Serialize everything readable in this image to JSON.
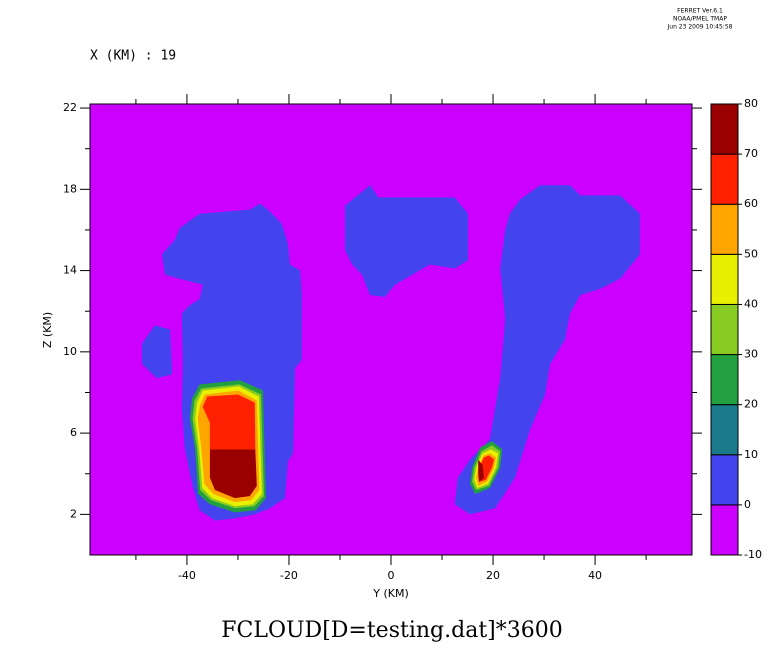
{
  "chart_data": {
    "type": "contour",
    "title": "FCLOUD[D=testing.dat]*3600",
    "subtitle": "X (KM) : 19",
    "header": [
      "FERRET Ver.6.1",
      "NOAA/PMEL TMAP",
      "Jun 23 2009 10:45:58"
    ],
    "x_label": "Y (KM)",
    "y_label": "Z (KM)",
    "xlim": [
      -59,
      59
    ],
    "ylim": [
      0,
      22.2
    ],
    "xticks": [
      -40,
      -20,
      0,
      20,
      40
    ],
    "xminorticks": [
      -50,
      -30,
      -10,
      10,
      30,
      50
    ],
    "yticks": [
      2,
      6,
      10,
      14,
      18,
      22
    ],
    "yminorticks": [
      4,
      8,
      12,
      16,
      20
    ],
    "levels": [
      -10,
      0,
      10,
      20,
      30,
      40,
      50,
      60,
      70,
      80
    ],
    "level_colors": [
      "#cc00ff",
      "#4444ee",
      "#1a7a8a",
      "#22a040",
      "#88cc22",
      "#e8f000",
      "#ffa500",
      "#ff2000",
      "#9b0000"
    ],
    "regions": [
      {
        "color": "#4444ee",
        "x": [
          -44.9,
          -42.4,
          -41.4,
          -37.5,
          -27.6,
          -25.7,
          -23.7,
          -21.4,
          -20.2,
          -19.8,
          -17.8,
          -17.5,
          -17.5,
          -18.8,
          -19.2,
          -20.2,
          -20.8,
          -23.7,
          -26.7,
          -30.6,
          -34.5,
          -37.5,
          -38.8,
          -40.4,
          -41.0,
          -40.8,
          -41.0,
          -39.4,
          -37.5,
          -36.9,
          -41.4,
          -44.3
        ],
        "y": [
          14.8,
          15.5,
          16.1,
          16.8,
          17.0,
          17.3,
          16.9,
          16.3,
          15.3,
          14.3,
          14.0,
          12.8,
          9.6,
          9.2,
          5.0,
          4.6,
          2.8,
          2.3,
          2.0,
          1.8,
          1.7,
          2.2,
          3.3,
          5.2,
          7.2,
          9.2,
          11.9,
          12.3,
          12.6,
          13.3,
          13.6,
          13.8
        ]
      },
      {
        "color": "#4444ee",
        "x": [
          -48.8,
          -46.3,
          -43.3,
          -42.9,
          -45.9,
          -48.8
        ],
        "y": [
          10.4,
          11.3,
          11.1,
          8.9,
          8.7,
          9.4
        ]
      },
      {
        "color": "#4444ee",
        "x": [
          -9.0,
          -4.1,
          -2.5,
          12.5,
          15.1,
          15.1,
          12.5,
          7.6,
          0.8,
          -1.2,
          -4.1,
          -5.7,
          -7.6,
          -9.0
        ],
        "y": [
          17.2,
          18.2,
          17.6,
          17.6,
          16.8,
          14.5,
          14.1,
          14.3,
          13.3,
          12.7,
          12.8,
          13.8,
          14.3,
          15.0
        ]
      },
      {
        "color": "#4444ee",
        "x": [
          23.3,
          25.3,
          29.2,
          35.1,
          37.1,
          44.9,
          48.8,
          48.8,
          44.9,
          41.0,
          37.1,
          35.1,
          34.1,
          31.2,
          30.2,
          27.3,
          24.3,
          20.4,
          15.5,
          12.5,
          13.1,
          15.5,
          19.4,
          20.4,
          21.4,
          22.4,
          21.8,
          21.4,
          22.4
        ],
        "y": [
          16.8,
          17.5,
          18.2,
          18.2,
          17.7,
          17.7,
          16.8,
          14.8,
          13.6,
          13.1,
          12.8,
          11.9,
          10.6,
          9.4,
          7.9,
          6.2,
          3.8,
          2.3,
          2.0,
          2.5,
          3.8,
          4.7,
          5.7,
          7.2,
          8.7,
          11.6,
          13.1,
          14.1,
          16.0
        ]
      },
      {
        "color": "#22a040",
        "x": [
          -39.0,
          -37.5,
          -29.6,
          -25.1,
          -24.5,
          -26.5,
          -30.6,
          -35.5,
          -37.8,
          -38.4,
          -39.4
        ],
        "y": [
          7.7,
          8.4,
          8.6,
          8.1,
          2.8,
          2.2,
          2.1,
          2.5,
          3.0,
          5.2,
          6.7
        ]
      },
      {
        "color": "#88cc22",
        "x": [
          -38.5,
          -37.2,
          -29.7,
          -25.5,
          -24.9,
          -26.8,
          -30.6,
          -35.3,
          -37.4,
          -38.0,
          -38.9
        ],
        "y": [
          7.6,
          8.2,
          8.4,
          7.9,
          2.9,
          2.4,
          2.3,
          2.7,
          3.2,
          5.2,
          6.7
        ]
      },
      {
        "color": "#e8f000",
        "x": [
          -38.0,
          -36.9,
          -29.8,
          -25.9,
          -25.3,
          -27.1,
          -30.6,
          -35.1,
          -37.0,
          -37.6,
          -38.4
        ],
        "y": [
          7.5,
          8.1,
          8.3,
          7.8,
          3.0,
          2.5,
          2.4,
          2.8,
          3.3,
          5.2,
          6.7
        ]
      },
      {
        "color": "#ffa500",
        "x": [
          -37.4,
          -36.5,
          -29.9,
          -26.3,
          -25.8,
          -27.4,
          -30.6,
          -34.8,
          -36.6,
          -37.2,
          -37.9
        ],
        "y": [
          7.4,
          7.9,
          8.1,
          7.6,
          3.2,
          2.7,
          2.6,
          3.0,
          3.5,
          5.3,
          6.7
        ]
      },
      {
        "color": "#ff2000",
        "x": [
          -36.9,
          -36.0,
          -30.0,
          -26.7,
          -26.6,
          -35.5,
          -35.5
        ],
        "y": [
          7.3,
          7.8,
          7.9,
          7.5,
          5.2,
          5.2,
          6.5
        ]
      },
      {
        "color": "#9b0000",
        "x": [
          -35.5,
          -26.6,
          -26.3,
          -27.7,
          -30.6,
          -34.5,
          -35.5
        ],
        "y": [
          5.2,
          5.2,
          3.4,
          2.9,
          2.8,
          3.2,
          3.8
        ]
      },
      {
        "color": "#22a040",
        "x": [
          15.9,
          17.5,
          19.8,
          21.8,
          21.4,
          19.4,
          16.5,
          15.5
        ],
        "y": [
          4.3,
          5.3,
          5.6,
          5.2,
          4.3,
          3.3,
          3.0,
          3.5
        ]
      },
      {
        "color": "#88cc22",
        "x": [
          16.3,
          17.7,
          19.8,
          21.4,
          21.0,
          19.2,
          16.7,
          15.9
        ],
        "y": [
          4.3,
          5.1,
          5.4,
          5.1,
          4.3,
          3.4,
          3.2,
          3.6
        ]
      },
      {
        "color": "#e8f000",
        "x": [
          16.7,
          17.9,
          19.6,
          21.0,
          20.6,
          19.0,
          16.9,
          16.3
        ],
        "y": [
          4.3,
          5.0,
          5.2,
          5.0,
          4.3,
          3.5,
          3.3,
          3.7
        ]
      },
      {
        "color": "#ffa500",
        "x": [
          17.1,
          18.1,
          19.4,
          20.6,
          20.2,
          18.8,
          17.1,
          16.7
        ],
        "y": [
          4.3,
          4.9,
          5.0,
          4.8,
          4.3,
          3.6,
          3.4,
          3.8
        ]
      },
      {
        "color": "#ff2000",
        "x": [
          17.3,
          18.2,
          19.2,
          20.2,
          19.8,
          18.6,
          17.3,
          17.1
        ],
        "y": [
          4.3,
          4.8,
          4.9,
          4.7,
          4.3,
          3.7,
          3.6,
          3.9
        ]
      },
      {
        "color": "#9b0000",
        "x": [
          17.1,
          18.0,
          18.2,
          17.3,
          17.1
        ],
        "y": [
          4.7,
          4.4,
          3.8,
          3.6,
          4.0
        ]
      }
    ]
  }
}
